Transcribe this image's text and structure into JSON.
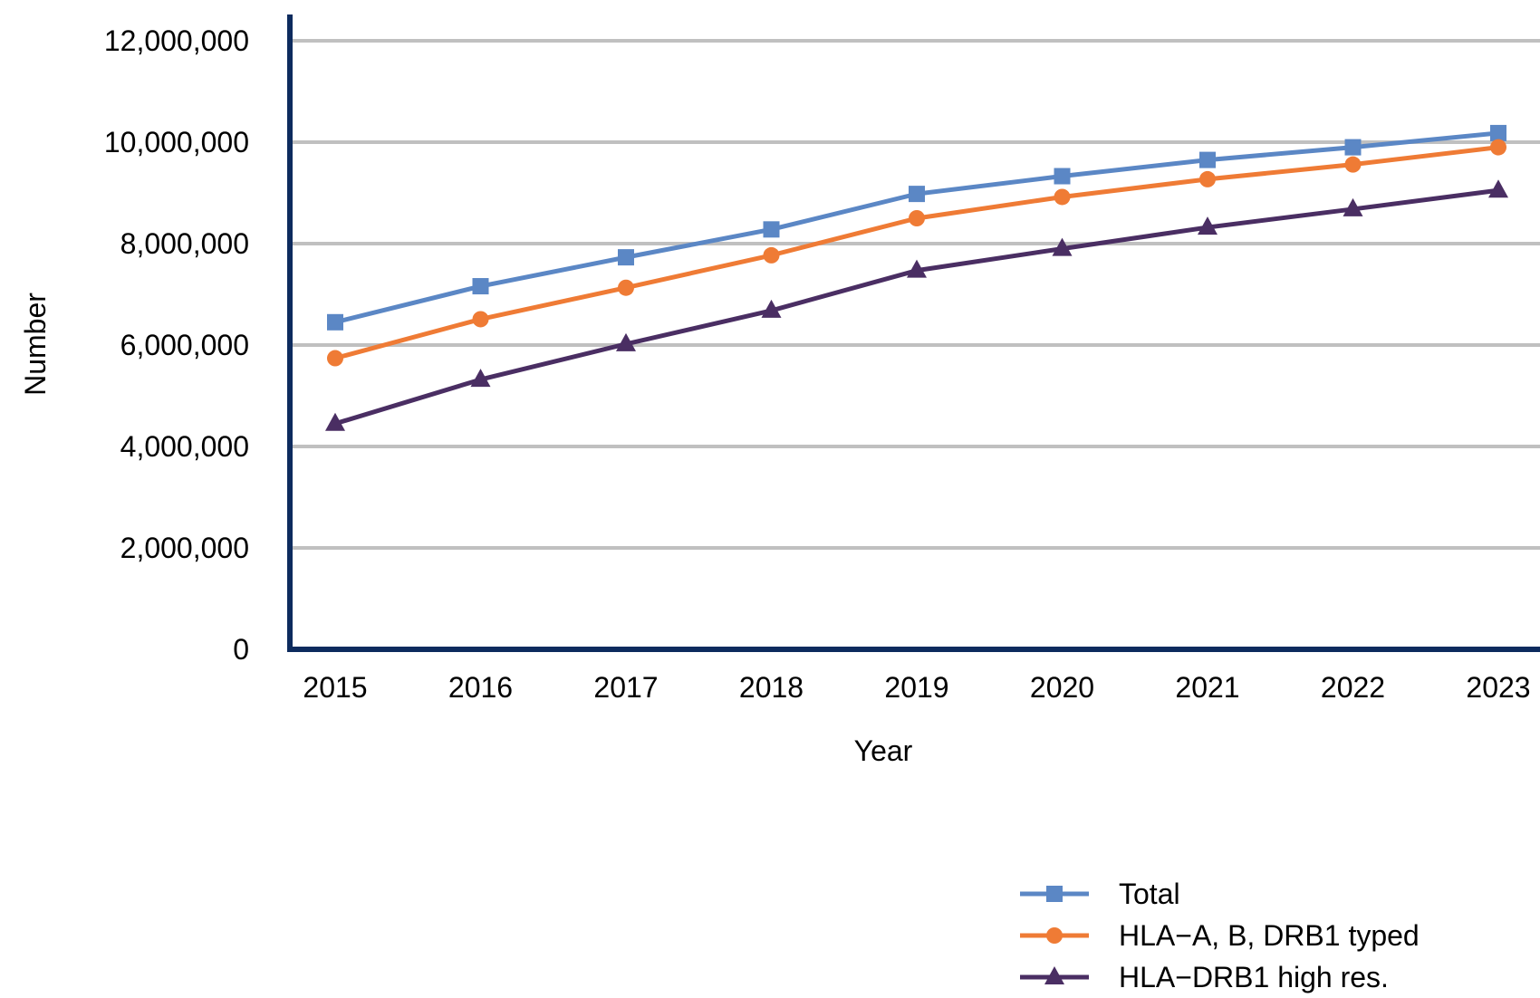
{
  "chart_data": {
    "type": "line",
    "title": "",
    "xlabel": "Year",
    "ylabel": "Number",
    "categories": [
      "2015",
      "2016",
      "2017",
      "2018",
      "2019",
      "2020",
      "2021",
      "2022",
      "2023"
    ],
    "ylim": [
      0,
      12000000
    ],
    "yticks": [
      0,
      2000000,
      4000000,
      6000000,
      8000000,
      10000000,
      12000000
    ],
    "ytick_labels": [
      "0",
      "2,000,000",
      "4,000,000",
      "6,000,000",
      "8,000,000",
      "10,000,000",
      "12,000,000"
    ],
    "grid": "horizontal",
    "legend_position": "bottom-right",
    "series": [
      {
        "name": "Total",
        "marker": "square",
        "color": "#5b87c5",
        "values": [
          6450000,
          7160000,
          7730000,
          8280000,
          8980000,
          9330000,
          9650000,
          9900000,
          10180000
        ]
      },
      {
        "name": "HLA−A, B, DRB1 typed",
        "marker": "circle",
        "color": "#ef7b35",
        "values": [
          5740000,
          6510000,
          7130000,
          7770000,
          8500000,
          8920000,
          9270000,
          9560000,
          9900000
        ]
      },
      {
        "name": "HLA−DRB1 high res.",
        "marker": "triangle",
        "color": "#4a2e63",
        "values": [
          4450000,
          5320000,
          6020000,
          6680000,
          7470000,
          7900000,
          8320000,
          8680000,
          9050000
        ]
      }
    ],
    "colors": {
      "axis": "#0d2b5e",
      "grid": "#c0c0c0"
    }
  }
}
